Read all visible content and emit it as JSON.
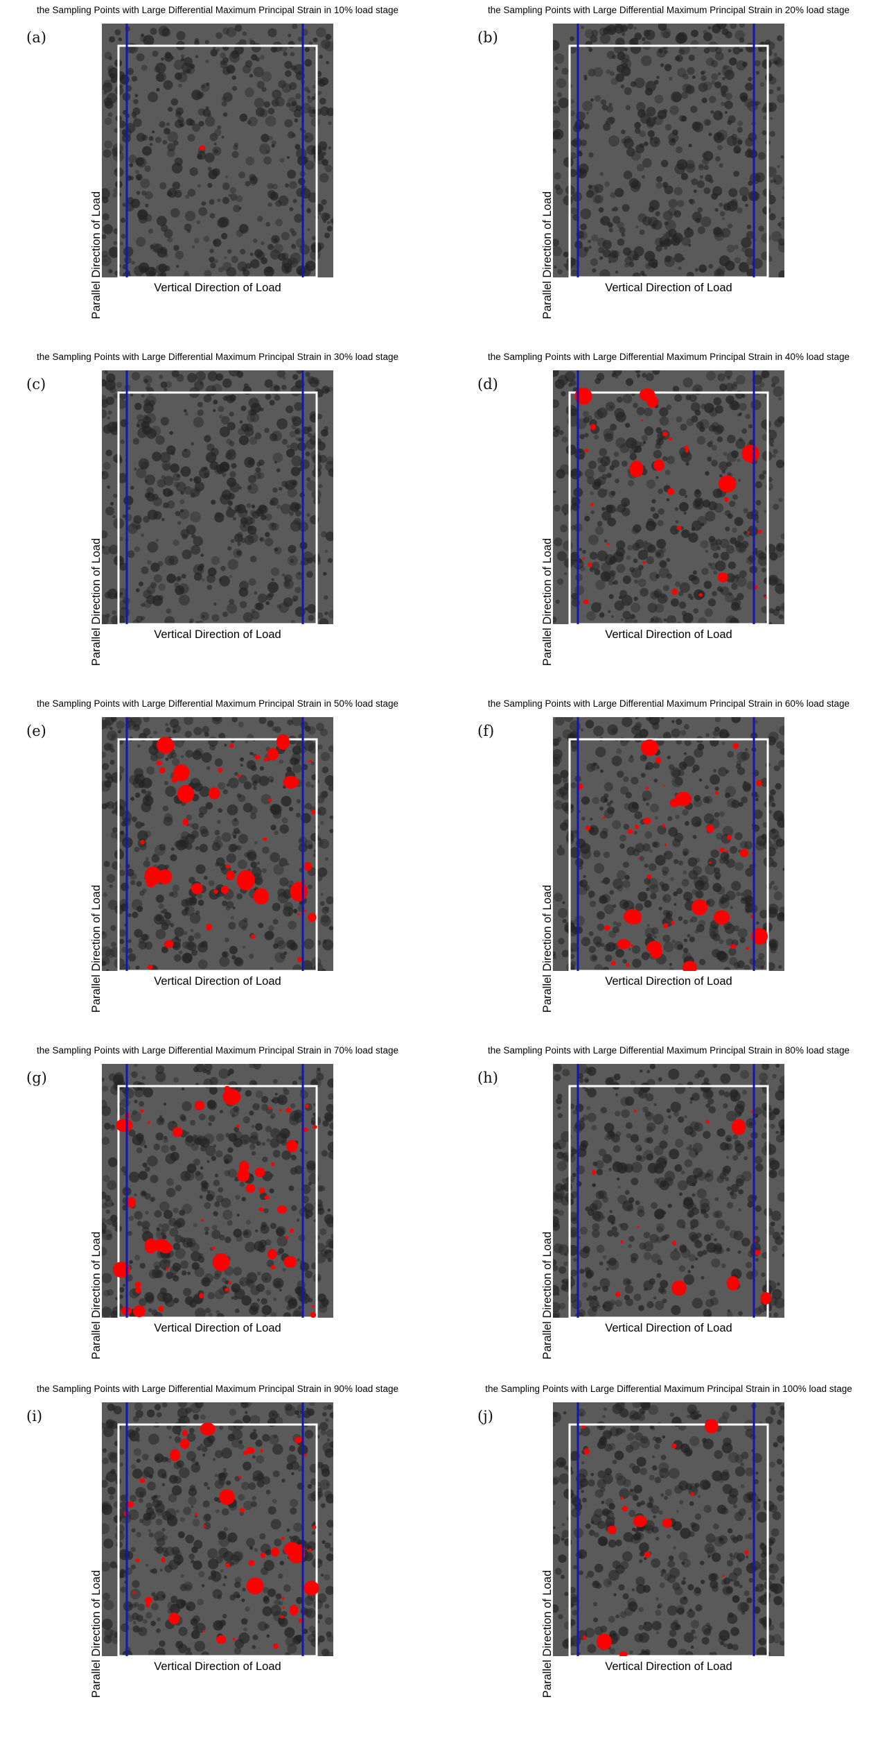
{
  "panels": [
    {
      "letter": "(a)",
      "title": "the Sampling Points with Large Differential Maximum Principal Strain in 10% load stage",
      "xlabel": "Vertical Direction of Load",
      "ylabel": "Parallel Direction of Load",
      "red_level": 0.01
    },
    {
      "letter": "(b)",
      "title": "the Sampling Points with Large Differential Maximum Principal Strain in 20% load stage",
      "xlabel": "Vertical Direction of Load",
      "ylabel": "Parallel Direction of Load",
      "red_level": 0.0
    },
    {
      "letter": "(c)",
      "title": "the Sampling Points with Large Differential Maximum Principal Strain in 30% load stage",
      "xlabel": "Vertical Direction of Load",
      "ylabel": "Parallel Direction of Load",
      "red_level": 0.0
    },
    {
      "letter": "(d)",
      "title": "the Sampling Points with Large Differential Maximum Principal Strain in 40% load stage",
      "xlabel": "Vertical Direction of Load",
      "ylabel": "Parallel Direction of Load",
      "red_level": 0.55
    },
    {
      "letter": "(e)",
      "title": "the Sampling Points with Large Differential Maximum Principal Strain in 50% load stage",
      "xlabel": "Vertical Direction of Load",
      "ylabel": "Parallel Direction of Load",
      "red_level": 0.8
    },
    {
      "letter": "(f)",
      "title": "the Sampling Points with Large Differential Maximum Principal Strain in 60% load stage",
      "xlabel": "Vertical Direction of Load",
      "ylabel": "Parallel Direction of Load",
      "red_level": 0.8
    },
    {
      "letter": "(g)",
      "title": "the Sampling Points with Large Differential Maximum Principal Strain in 70% load stage",
      "xlabel": "Vertical Direction of Load",
      "ylabel": "Parallel Direction of Load",
      "red_level": 0.9
    },
    {
      "letter": "(h)",
      "title": "the Sampling Points with Large Differential Maximum Principal Strain in 80% load stage",
      "xlabel": "Vertical Direction of Load",
      "ylabel": "Parallel Direction of Load",
      "red_level": 0.25
    },
    {
      "letter": "(i)",
      "title": "the Sampling Points with Large Differential Maximum Principal Strain in 90% load stage",
      "xlabel": "Vertical Direction of Load",
      "ylabel": "Parallel Direction of Load",
      "red_level": 0.85
    },
    {
      "letter": "(j)",
      "title": "the Sampling Points with Large Differential Maximum Principal Strain in 100% load stage",
      "xlabel": "Vertical Direction of Load",
      "ylabel": "Parallel Direction of Load",
      "red_level": 0.3
    }
  ],
  "colors": {
    "background": "#ffffff",
    "speckle_field": "#5a5a5a",
    "speckle_dots": "#242424",
    "roi_frame": "#ffffff",
    "load_boundary_lines": "#1416b4",
    "high_strain_points": "#ff0000",
    "text": "#000000"
  }
}
